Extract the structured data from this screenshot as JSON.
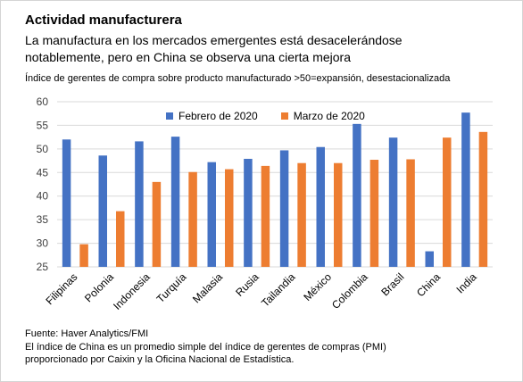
{
  "header": {
    "title": "Actividad manufacturera",
    "subtitle_line1": "La manufactura en los mercados emergentes está desacelerándose",
    "subtitle_line2": "notablemente, pero en China se observa una cierta mejora",
    "axis_note": "Índice de gerentes de compra sobre producto manufacturado >50=expansión, desestacionalizada"
  },
  "footer": {
    "source": "Fuente: Haver Analytics/FMI",
    "note_line1": "El índice de China es un promedio simple del índice de gerentes de compras (PMI)",
    "note_line2": "proporcionado por Caixin y la Oficina Nacional de Estadística."
  },
  "colors": {
    "series1": "#4472C4",
    "series2": "#ED7D31",
    "grid": "#d9d9d9",
    "axis_text": "#404040"
  },
  "chart_data": {
    "type": "bar",
    "title": "Actividad manufacturera",
    "ylabel": "",
    "xlabel": "",
    "ylim": [
      25,
      60
    ],
    "yticks": [
      25,
      30,
      35,
      40,
      45,
      50,
      55,
      60
    ],
    "grid": true,
    "legend_position": "top",
    "categories": [
      "Filipinas",
      "Polonia",
      "Indonesia",
      "Turquía",
      "Malasia",
      "Rusia",
      "Tailandia",
      "México",
      "Colombia",
      "Brasil",
      "China",
      "India"
    ],
    "series": [
      {
        "name": "Febrero de 2020",
        "values": [
          52.0,
          48.6,
          51.6,
          52.6,
          47.2,
          47.9,
          49.7,
          50.4,
          55.3,
          52.4,
          28.3,
          57.7
        ]
      },
      {
        "name": "Marzo de 2020",
        "values": [
          29.8,
          36.8,
          43.0,
          45.1,
          45.7,
          46.4,
          47.0,
          47.0,
          47.7,
          47.8,
          52.4,
          53.6
        ]
      }
    ]
  }
}
